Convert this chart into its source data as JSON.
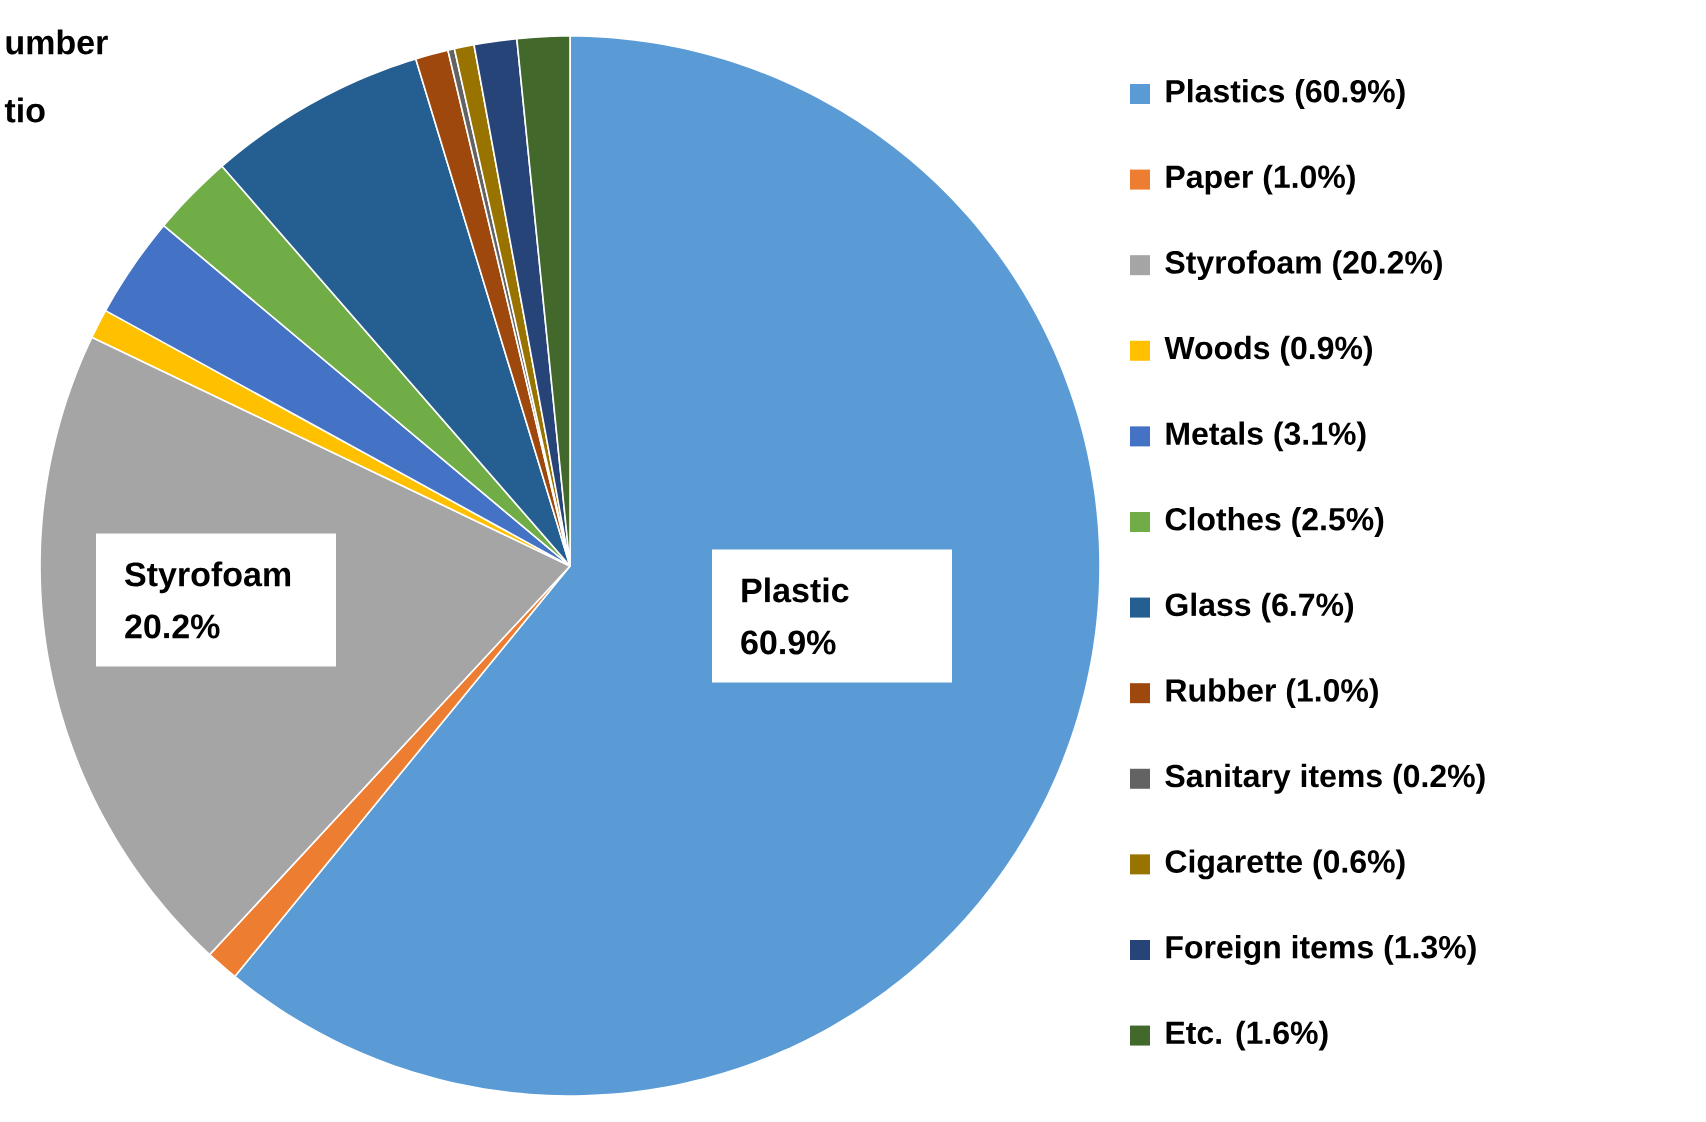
{
  "chart_data": {
    "type": "pie",
    "categories": [
      "Plastics (60.9%)",
      "Paper (1.0%)",
      "Styrofoam (20.2%)",
      "Woods (0.9%)",
      "Metals (3.1%)",
      "Clothes (2.5%)",
      "Glass (6.7%)",
      "Rubber (1.0%)",
      "Sanitary items (0.2%)",
      "Cigarette (0.6%)",
      "Foreign items (1.3%)",
      "Etc. (1.6%)"
    ],
    "values": [
      60.9,
      1.0,
      20.2,
      0.9,
      3.1,
      2.5,
      6.7,
      1.0,
      0.2,
      0.6,
      1.3,
      1.6
    ],
    "colors": [
      "#5b9bd5",
      "#ed7d31",
      "#a5a5a5",
      "#ffc000",
      "#4472c4",
      "#70ad47",
      "#255e91",
      "#9e480e",
      "#636363",
      "#997300",
      "#264478",
      "#43682b"
    ],
    "annotations": [
      "umber",
      "tio",
      "Plastic 60.9%",
      "Styrofoam 20.2%"
    ],
    "legend": "right"
  }
}
